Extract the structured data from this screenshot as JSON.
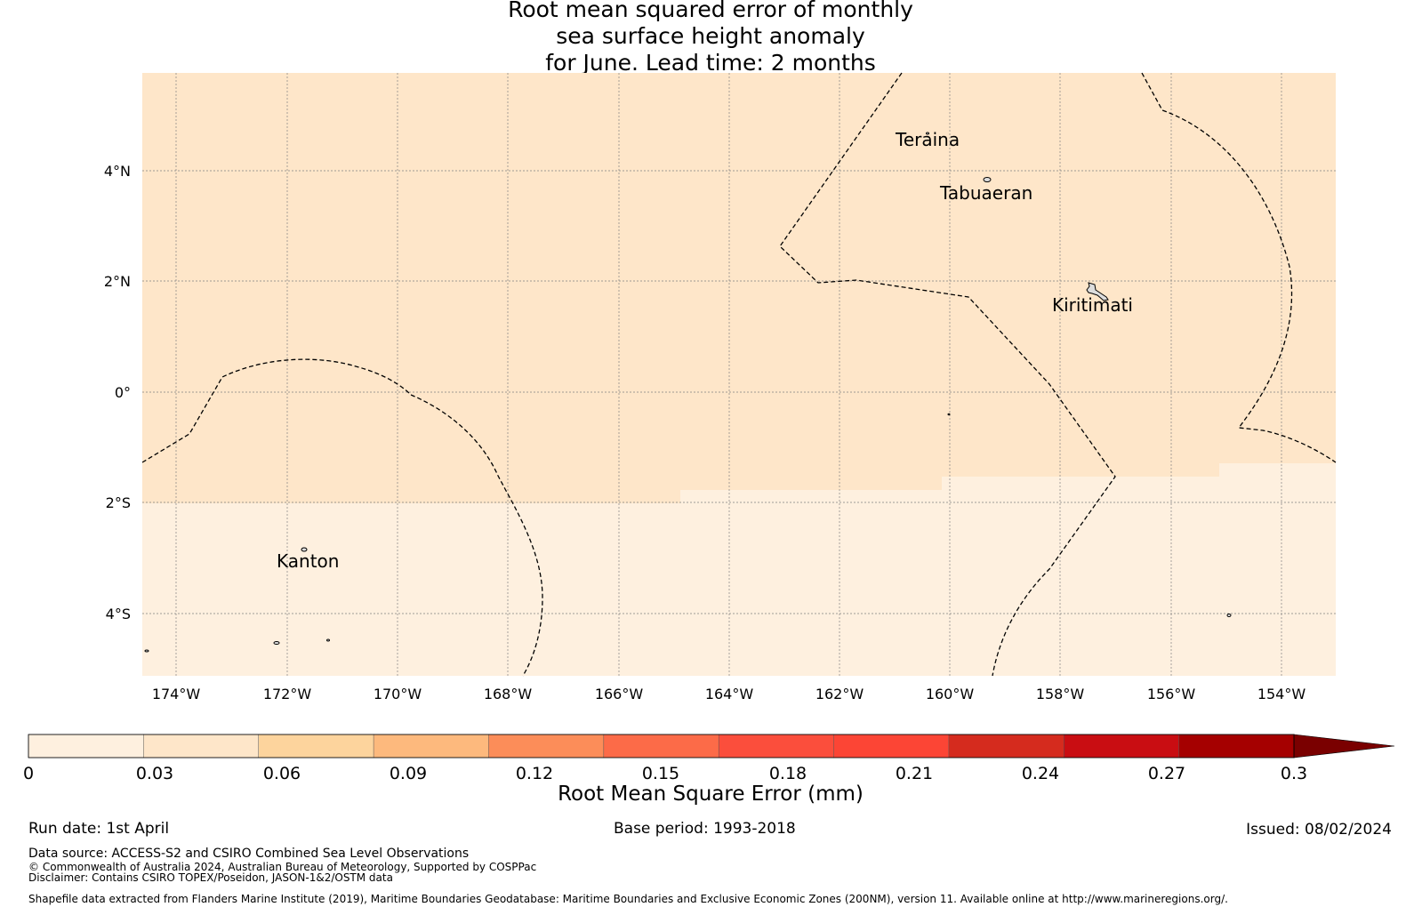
{
  "title": {
    "line1": "Root mean squared error of monthly",
    "line2": "sea surface height anomaly",
    "line3": "for June. Lead time: 2 months"
  },
  "map": {
    "lat_labels": [
      "4°N",
      "2°N",
      "0°",
      "2°S",
      "4°S"
    ],
    "lon_labels": [
      "174°W",
      "172°W",
      "170°W",
      "168°W",
      "166°W",
      "164°W",
      "162°W",
      "160°W",
      "158°W",
      "156°W",
      "154°W"
    ],
    "places": [
      "Teraina",
      "Tabuaeran",
      "Kiritimati",
      "Kanton"
    ],
    "colors": {
      "zone_north": "#fee6c9",
      "zone_south": "#fef0df",
      "boundary": "#000000",
      "grid": "#808080"
    }
  },
  "colorbar": {
    "title": "Root Mean Square Error (mm)",
    "ticks": [
      "0",
      "0.03",
      "0.06",
      "0.09",
      "0.12",
      "0.15",
      "0.18",
      "0.21",
      "0.24",
      "0.27",
      "0.3"
    ],
    "colors": [
      "#fef0df",
      "#fee6c9",
      "#fdd49d",
      "#fdb97d",
      "#fc8d59",
      "#fc6b48",
      "#fb4e3c",
      "#fc4535",
      "#d52b1e",
      "#c90d12",
      "#a50000"
    ],
    "extend_color": "#7a0000"
  },
  "footer": {
    "run_date": "Run date: 1st April",
    "base_period": "Base period: 1993-2018",
    "issued": "Issued: 08/02/2024",
    "data_source": "Data source: ACCESS-S2 and CSIRO Combined Sea Level Observations",
    "copyright": "© Commonwealth of Australia 2024, Australian Bureau of Meteorology, Supported by COSPPac",
    "disclaimer": "Disclaimer: Contains CSIRO TOPEX/Poseidon, JASON-1&2/OSTM data",
    "shapefile": "Shapefile data extracted from Flanders Marine Institute (2019), Maritime Boundaries Geodatabase: Maritime Boundaries and Exclusive Economic Zones (200NM), version 11. Available online at http://www.marineregions.org/."
  }
}
